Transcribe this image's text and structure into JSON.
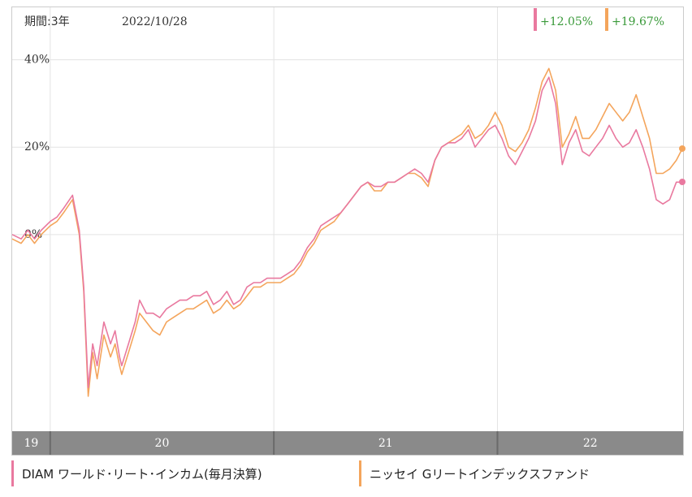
{
  "header": {
    "period_label": "期間:3年",
    "date_label": "2022/10/28"
  },
  "chart_data": {
    "type": "line",
    "title": "",
    "xlabel": "",
    "ylabel": "",
    "ylim": [
      -45,
      52
    ],
    "y_ticks": [
      {
        "value": 40,
        "label": "40%"
      },
      {
        "value": 20,
        "label": "20%"
      },
      {
        "value": 0,
        "label": "0%"
      }
    ],
    "x_start": 2019.83,
    "x_end": 2022.83,
    "x_ticks": [
      {
        "value": 2020.0,
        "label": "19"
      },
      {
        "value": 2021.0,
        "label": "20"
      },
      {
        "value": 2022.0,
        "label": "21"
      },
      {
        "value": 2023.0,
        "label": "22"
      }
    ],
    "grid": true,
    "series": [
      {
        "name": "DIAM ワールド･リート･インカム(毎月決算)",
        "color": "#e9799f",
        "change_label": "+12.05%",
        "x": [
          2019.83,
          2019.87,
          2019.9,
          2019.93,
          2019.96,
          2020.0,
          2020.03,
          2020.06,
          2020.1,
          2020.13,
          2020.15,
          2020.17,
          2020.19,
          2020.21,
          2020.24,
          2020.27,
          2020.29,
          2020.31,
          2020.32,
          2020.35,
          2020.38,
          2020.4,
          2020.43,
          2020.46,
          2020.49,
          2020.52,
          2020.55,
          2020.58,
          2020.61,
          2020.64,
          2020.67,
          2020.7,
          2020.73,
          2020.76,
          2020.79,
          2020.82,
          2020.85,
          2020.88,
          2020.91,
          2020.94,
          2020.97,
          2021.0,
          2021.03,
          2021.06,
          2021.09,
          2021.12,
          2021.15,
          2021.18,
          2021.21,
          2021.24,
          2021.27,
          2021.3,
          2021.33,
          2021.36,
          2021.39,
          2021.42,
          2021.45,
          2021.48,
          2021.51,
          2021.54,
          2021.57,
          2021.6,
          2021.63,
          2021.66,
          2021.69,
          2021.72,
          2021.75,
          2021.78,
          2021.81,
          2021.84,
          2021.87,
          2021.9,
          2021.93,
          2021.96,
          2021.99,
          2022.02,
          2022.05,
          2022.08,
          2022.11,
          2022.14,
          2022.17,
          2022.2,
          2022.23,
          2022.26,
          2022.29,
          2022.32,
          2022.35,
          2022.38,
          2022.41,
          2022.44,
          2022.47,
          2022.5,
          2022.53,
          2022.56,
          2022.59,
          2022.62,
          2022.65,
          2022.68,
          2022.71,
          2022.74,
          2022.77,
          2022.8,
          2022.83
        ],
        "values": [
          0,
          -1,
          1,
          -1,
          1,
          3,
          4,
          6,
          9,
          1,
          -12,
          -35,
          -25,
          -30,
          -20,
          -25,
          -22,
          -28,
          -30,
          -25,
          -20,
          -15,
          -18,
          -18,
          -19,
          -17,
          -16,
          -15,
          -15,
          -14,
          -14,
          -13,
          -16,
          -15,
          -13,
          -16,
          -15,
          -12,
          -11,
          -11,
          -10,
          -10,
          -10,
          -9,
          -8,
          -6,
          -3,
          -1,
          2,
          3,
          4,
          5,
          7,
          9,
          11,
          12,
          11,
          11,
          12,
          12,
          13,
          14,
          15,
          14,
          12,
          17,
          20,
          21,
          21,
          22,
          24,
          20,
          22,
          24,
          25,
          22,
          18,
          16,
          19,
          22,
          26,
          33,
          36,
          30,
          16,
          21,
          24,
          19,
          18,
          20,
          22,
          25,
          22,
          20,
          21,
          24,
          20,
          15,
          8,
          7,
          8,
          12,
          12
        ],
        "endpoint_value": 12.05
      },
      {
        "name": "ニッセイ Gリートインデックスファンド",
        "color": "#f4a55c",
        "change_label": "+19.67%",
        "x": [
          2019.83,
          2019.87,
          2019.9,
          2019.93,
          2019.96,
          2020.0,
          2020.03,
          2020.06,
          2020.1,
          2020.13,
          2020.15,
          2020.17,
          2020.19,
          2020.21,
          2020.24,
          2020.27,
          2020.29,
          2020.31,
          2020.32,
          2020.35,
          2020.38,
          2020.4,
          2020.43,
          2020.46,
          2020.49,
          2020.52,
          2020.55,
          2020.58,
          2020.61,
          2020.64,
          2020.67,
          2020.7,
          2020.73,
          2020.76,
          2020.79,
          2020.82,
          2020.85,
          2020.88,
          2020.91,
          2020.94,
          2020.97,
          2021.0,
          2021.03,
          2021.06,
          2021.09,
          2021.12,
          2021.15,
          2021.18,
          2021.21,
          2021.24,
          2021.27,
          2021.3,
          2021.33,
          2021.36,
          2021.39,
          2021.42,
          2021.45,
          2021.48,
          2021.51,
          2021.54,
          2021.57,
          2021.6,
          2021.63,
          2021.66,
          2021.69,
          2021.72,
          2021.75,
          2021.78,
          2021.81,
          2021.84,
          2021.87,
          2021.9,
          2021.93,
          2021.96,
          2021.99,
          2022.02,
          2022.05,
          2022.08,
          2022.11,
          2022.14,
          2022.17,
          2022.2,
          2022.23,
          2022.26,
          2022.29,
          2022.32,
          2022.35,
          2022.38,
          2022.41,
          2022.44,
          2022.47,
          2022.5,
          2022.53,
          2022.56,
          2022.59,
          2022.62,
          2022.65,
          2022.68,
          2022.71,
          2022.74,
          2022.77,
          2022.8,
          2022.83
        ],
        "values": [
          -1,
          -2,
          0,
          -2,
          0,
          2,
          3,
          5,
          8,
          0,
          -13,
          -37,
          -27,
          -33,
          -23,
          -28,
          -25,
          -30,
          -32,
          -27,
          -22,
          -18,
          -20,
          -22,
          -23,
          -20,
          -19,
          -18,
          -17,
          -17,
          -16,
          -15,
          -18,
          -17,
          -15,
          -17,
          -16,
          -14,
          -12,
          -12,
          -11,
          -11,
          -11,
          -10,
          -9,
          -7,
          -4,
          -2,
          1,
          2,
          3,
          5,
          7,
          9,
          11,
          12,
          10,
          10,
          12,
          12,
          13,
          14,
          14,
          13,
          11,
          17,
          20,
          21,
          22,
          23,
          25,
          22,
          23,
          25,
          28,
          25,
          20,
          19,
          21,
          24,
          29,
          35,
          38,
          33,
          20,
          23,
          27,
          22,
          22,
          24,
          27,
          30,
          28,
          26,
          28,
          32,
          27,
          22,
          14,
          14,
          15,
          17,
          20
        ],
        "endpoint_value": 19.67
      }
    ]
  }
}
